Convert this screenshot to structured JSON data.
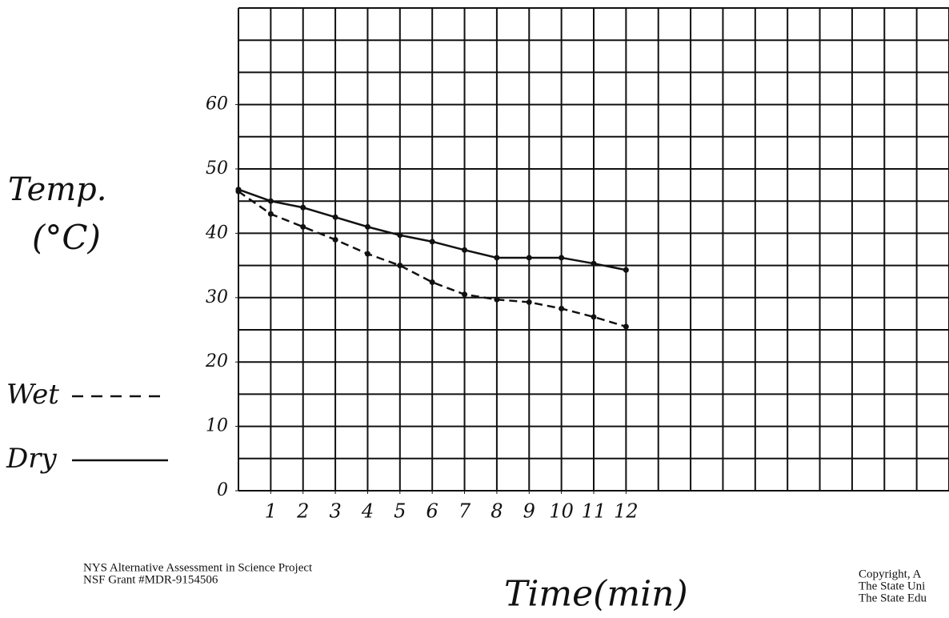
{
  "chart_data": {
    "type": "line",
    "y_label_line1": "Temp.",
    "y_label_line2": "(°C)",
    "x_label": "Time(min)",
    "x": [
      0,
      1,
      2,
      3,
      4,
      5,
      6,
      7,
      8,
      9,
      10,
      11,
      12
    ],
    "series": [
      {
        "name": "Wet",
        "color": "#111111",
        "dash": true,
        "values": [
          46.5,
          43,
          41,
          39,
          36.8,
          35,
          32.4,
          30.5,
          29.7,
          29.3,
          28.3,
          27,
          25.5
        ]
      },
      {
        "name": "Dry",
        "color": "#111111",
        "dash": false,
        "values": [
          46.8,
          45,
          44,
          42.5,
          41,
          39.7,
          38.7,
          37.4,
          36.2,
          36.2,
          36.2,
          35.3,
          34.3
        ]
      }
    ],
    "xlim": [
      0,
      22
    ],
    "xticks": [
      1,
      2,
      3,
      4,
      5,
      6,
      7,
      8,
      9,
      10,
      11,
      12
    ],
    "ylim": [
      0,
      75
    ],
    "yticks": [
      0,
      10,
      20,
      30,
      40,
      50,
      60
    ],
    "grid": true
  },
  "footer": {
    "left_line1": "NYS Alternative Assessment in Science Project",
    "left_line2": "NSF Grant #MDR-9154506",
    "right_line1": "Copyright, A",
    "right_line2": "The State Uni",
    "right_line3": "The State Edu"
  }
}
